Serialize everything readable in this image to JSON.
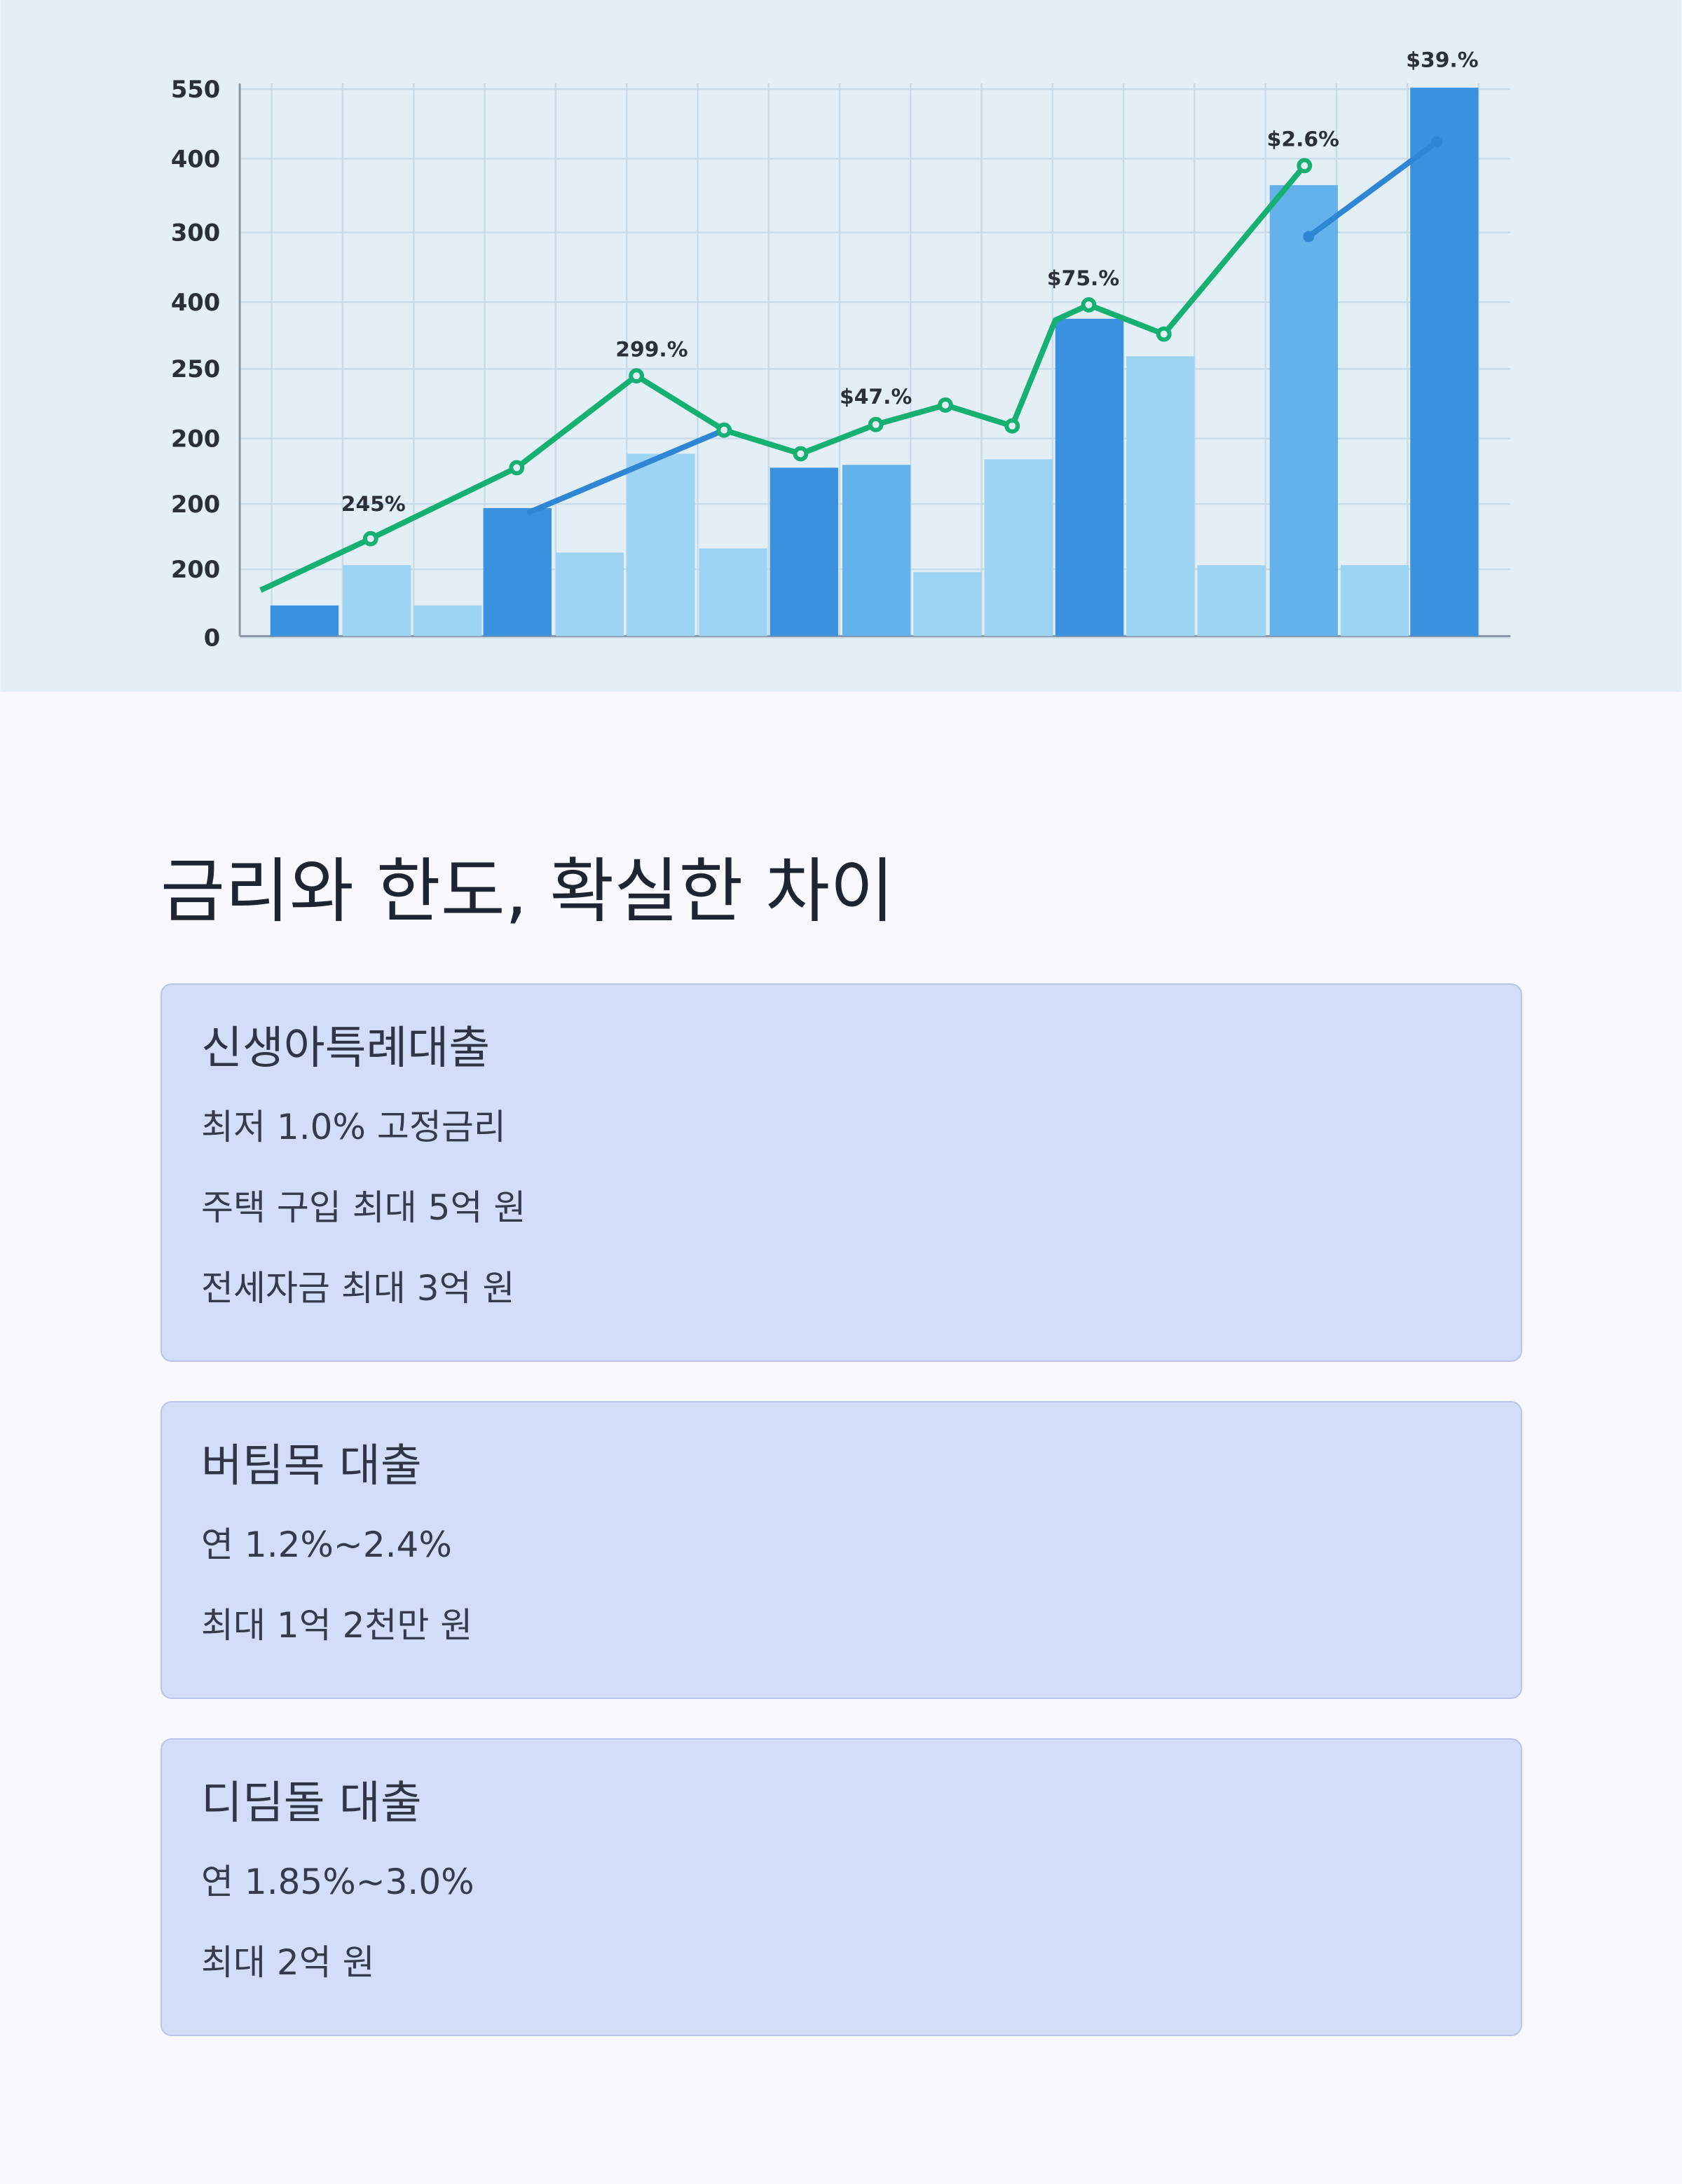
{
  "hero_chart": {
    "y_axis_labels": [
      "550",
      "400",
      "300",
      "400",
      "250",
      "200",
      "200",
      "200",
      "0"
    ],
    "annotations": [
      "245%",
      "299.%",
      "$47.%",
      "$75.%",
      "$2.6%",
      "$39.%"
    ]
  },
  "heading": "금리와 한도, 확실한 차이",
  "cards": [
    {
      "title": "신생아특례대출",
      "items": [
        "최저 1.0% 고정금리",
        "주택 구입 최대 5억 원",
        "전세자금 최대 3억 원"
      ]
    },
    {
      "title": "버팀목 대출",
      "items": [
        "연 1.2%~2.4%",
        "최대 1억 2천만 원"
      ]
    },
    {
      "title": "디딤돌 대출",
      "items": [
        "연 1.85%~3.0%",
        "최대 2억 원"
      ]
    }
  ]
}
